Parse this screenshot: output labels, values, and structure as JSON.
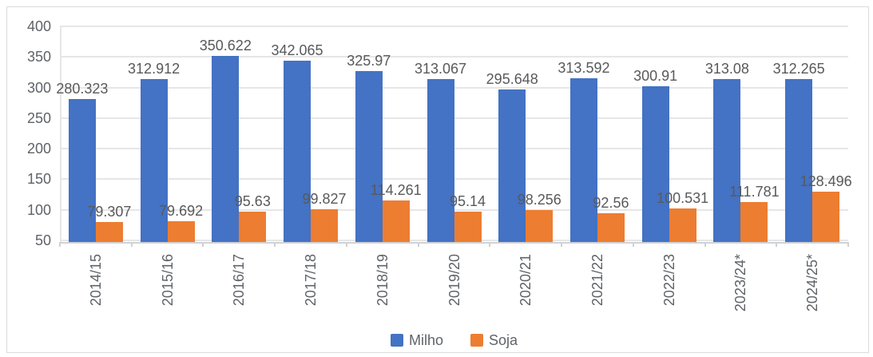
{
  "chart_data": {
    "type": "bar",
    "title": "",
    "xlabel": "",
    "ylabel": "",
    "categories": [
      "2014/15",
      "2015/16",
      "2016/17",
      "2017/18",
      "2018/19",
      "2019/20",
      "2020/21",
      "2021/22",
      "2022/23",
      "2023/24*",
      "2024/25*"
    ],
    "series": [
      {
        "name": "Milho",
        "color": "#4472C4",
        "values": [
          280.323,
          312.912,
          350.622,
          342.065,
          325.97,
          313.067,
          295.648,
          313.592,
          300.91,
          313.08,
          312.265
        ]
      },
      {
        "name": "Soja",
        "color": "#ED7D31",
        "values": [
          79.307,
          79.692,
          95.63,
          99.827,
          114.261,
          95.14,
          98.256,
          92.56,
          100.531,
          111.781,
          128.496
        ]
      }
    ],
    "ylim": [
      50,
      400
    ],
    "yticks": [
      50,
      100,
      150,
      200,
      250,
      300,
      350,
      400
    ],
    "grid": true,
    "bar_value_labels": true,
    "legend_position": "bottom",
    "x_tick_label_rotation_deg": 90
  },
  "colors": {
    "grid": "#e6e6e6",
    "axis": "#cfd2d6",
    "frame_border": "#dcdcdc",
    "label_text": "#5f6368",
    "value_text": "#58595b"
  }
}
